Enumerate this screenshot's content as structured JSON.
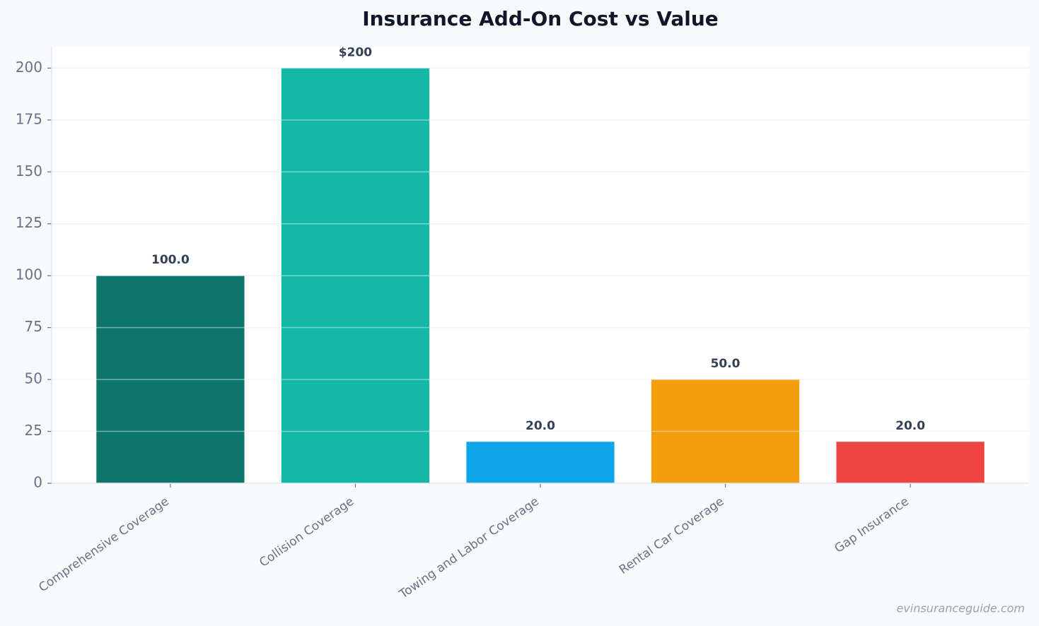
{
  "chart_data": {
    "type": "bar",
    "title": "Insurance Add-On Cost vs Value",
    "categories": [
      "Comprehensive Coverage",
      "Collision Coverage",
      "Towing and Labor Coverage",
      "Rental Car Coverage",
      "Gap Insurance"
    ],
    "values": [
      100,
      200,
      20,
      50,
      20
    ],
    "value_labels": [
      "100.0",
      "$200",
      "20.0",
      "50.0",
      "20.0"
    ],
    "colors": [
      "#0f766e",
      "#14b8a6",
      "#0ea5e9",
      "#f59e0b",
      "#ef4444"
    ],
    "ylim": [
      0,
      210
    ],
    "yticks": [
      0,
      25,
      50,
      75,
      100,
      125,
      150,
      175,
      200
    ],
    "grid": true,
    "watermark": "evinsuranceguide.com"
  }
}
